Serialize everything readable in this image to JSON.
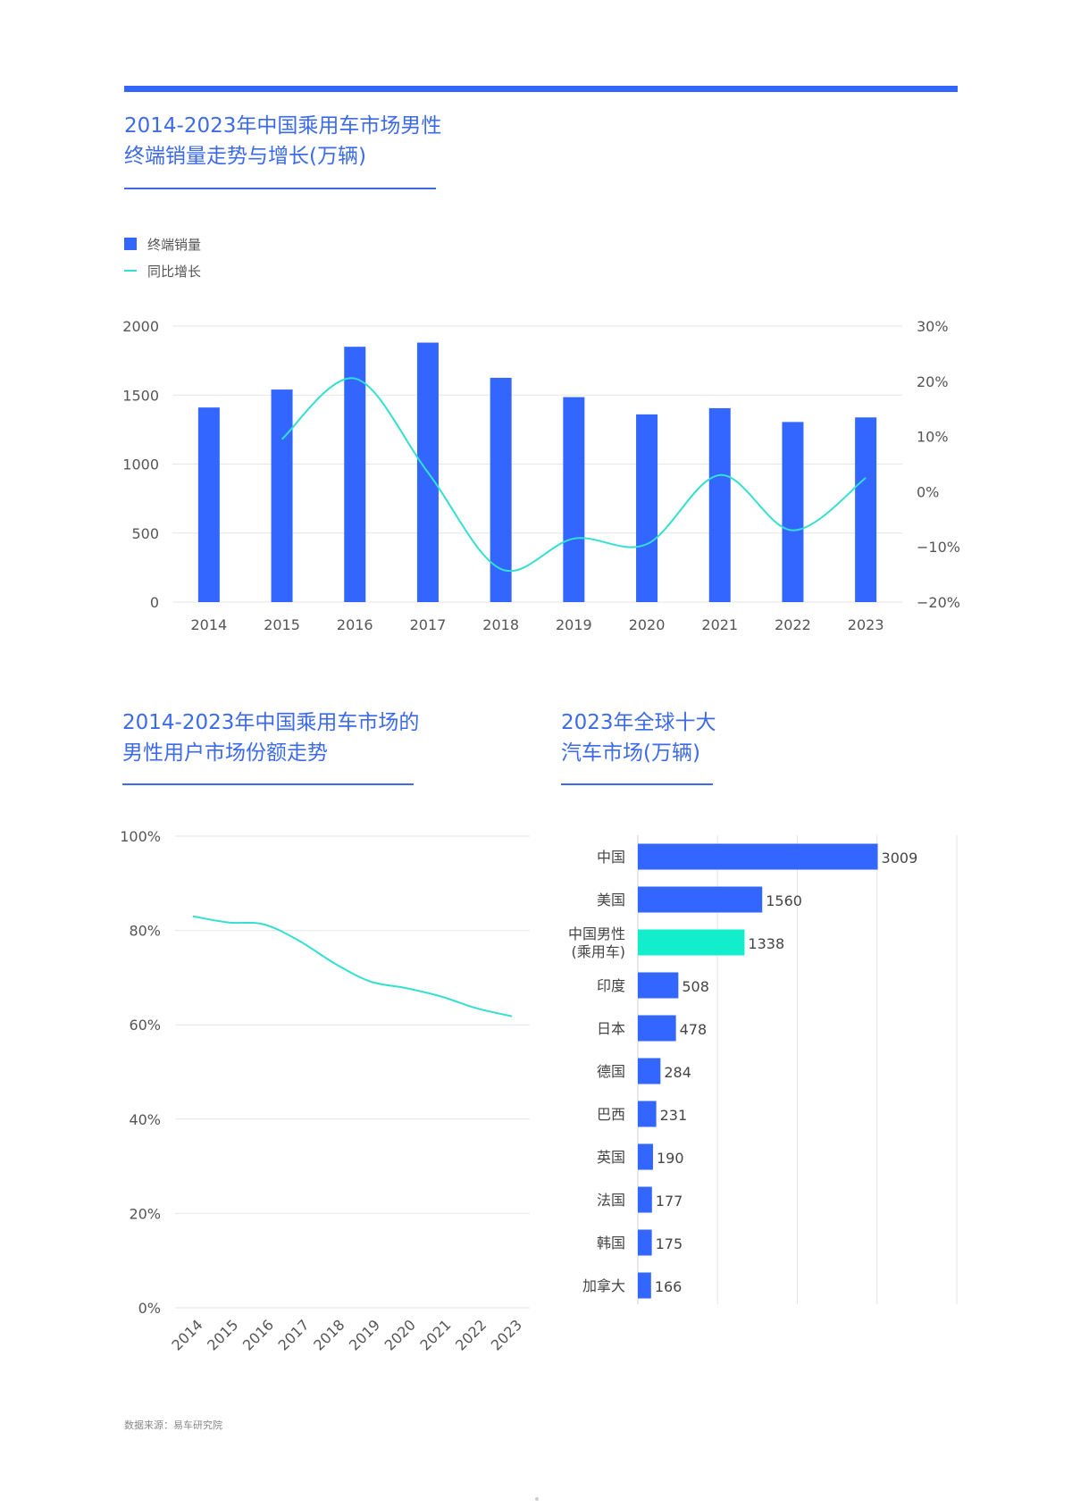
{
  "colors": {
    "bar": "#3366ff",
    "line": "#33e0cf",
    "highlight": "#12eecb",
    "title": "#3d6be8",
    "grid": "#e6e6e6"
  },
  "chart1": {
    "title_line1": "2014-2023年中国乘用车市场男性",
    "title_line2": "终端销量走势与增长(万辆)",
    "legend": {
      "bar": "终端销量",
      "line": "同比增长"
    }
  },
  "chart2": {
    "title_line1": "2014-2023年中国乘用车市场的",
    "title_line2": "男性用户市场份额走势"
  },
  "chart3": {
    "title_line1": "2023年全球十大",
    "title_line2": "汽车市场(万辆)"
  },
  "source": "数据来源：易车研究院",
  "chart_data": [
    {
      "type": "bar",
      "title": "2014-2023年中国乘用车市场男性终端销量走势与增长(万辆)",
      "categories": [
        "2014",
        "2015",
        "2016",
        "2017",
        "2018",
        "2019",
        "2020",
        "2021",
        "2022",
        "2023"
      ],
      "series": [
        {
          "name": "终端销量",
          "type": "bar",
          "axis": "left",
          "values": [
            1410,
            1540,
            1850,
            1880,
            1625,
            1485,
            1360,
            1405,
            1305,
            1338
          ]
        },
        {
          "name": "同比增长",
          "type": "line",
          "axis": "right",
          "unit": "%",
          "values": [
            null,
            9.5,
            20.5,
            3.5,
            -14,
            -8.5,
            -9.5,
            3,
            -7,
            2.5
          ]
        }
      ],
      "ylim": [
        0,
        2000
      ],
      "yticks": [
        "0",
        "500",
        "1000",
        "1500",
        "2000"
      ],
      "y2lim": [
        -20,
        30
      ],
      "y2ticks": [
        "30%",
        "20%",
        "10%",
        "0%",
        "−10%",
        "−20%"
      ]
    },
    {
      "type": "line",
      "title": "2014-2023年中国乘用车市场的男性用户市场份额走势",
      "categories": [
        "2014",
        "2015",
        "2016",
        "2017",
        "2018",
        "2019",
        "2020",
        "2021",
        "2022",
        "2023"
      ],
      "series": [
        {
          "name": "男性用户市场份额",
          "unit": "%",
          "values": [
            83,
            81.7,
            81.3,
            77.8,
            73,
            69.2,
            67.8,
            66,
            63.5,
            61.8
          ]
        }
      ],
      "ylim": [
        0,
        100
      ],
      "yticks": [
        "0%",
        "20%",
        "40%",
        "60%",
        "80%",
        "100%"
      ]
    },
    {
      "type": "bar",
      "orientation": "horizontal",
      "title": "2023年全球十大汽车市场(万辆)",
      "categories": [
        [
          "中国"
        ],
        [
          "美国"
        ],
        [
          "中国男性",
          "(乘用车)"
        ],
        [
          "印度"
        ],
        [
          "日本"
        ],
        [
          "德国"
        ],
        [
          "巴西"
        ],
        [
          "英国"
        ],
        [
          "法国"
        ],
        [
          "韩国"
        ],
        [
          "加拿大"
        ]
      ],
      "values": [
        3009,
        1560,
        1338,
        508,
        478,
        284,
        231,
        190,
        177,
        175,
        166
      ],
      "value_labels": [
        "3009",
        "1560",
        "1338",
        "508",
        "478",
        "284",
        "231",
        "190",
        "177",
        "175",
        "166"
      ],
      "highlight_index": 2,
      "xlim": [
        0,
        4000
      ],
      "xgrid": [
        0,
        1000,
        2000,
        3000,
        4000
      ]
    }
  ]
}
